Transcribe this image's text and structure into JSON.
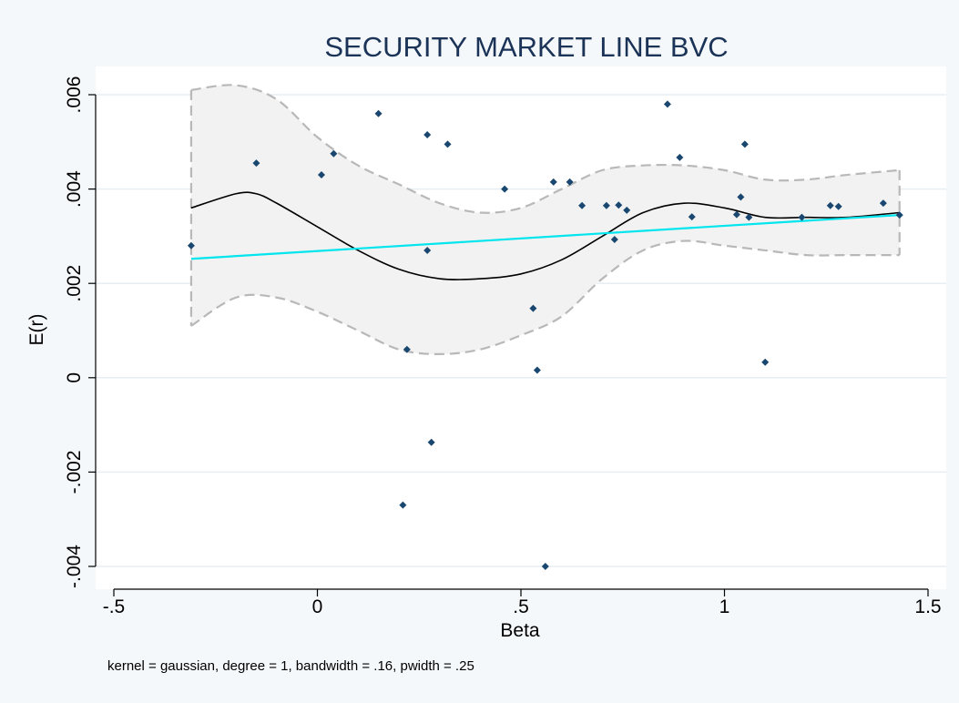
{
  "chart_data": {
    "type": "scatter",
    "title": "SECURITY MARKET LINE BVC",
    "xlabel": "Beta",
    "ylabel": "E(r)",
    "note": "kernel = gaussian, degree = 1, bandwidth = .16, pwidth = .25",
    "xlim": [
      -0.5,
      1.5
    ],
    "ylim": [
      -0.004,
      0.006
    ],
    "xticks": [
      -0.5,
      0,
      0.5,
      1,
      1.5
    ],
    "xtick_labels": [
      "-.5",
      "0",
      ".5",
      "1",
      "1.5"
    ],
    "yticks": [
      -0.004,
      -0.002,
      0,
      0.002,
      0.004,
      0.006
    ],
    "ytick_labels": [
      "-.004",
      "-.002",
      "0",
      ".002",
      ".004",
      ".006"
    ],
    "grid": true,
    "legend": "none",
    "colors": {
      "points": "#1a476f",
      "fit_line": "#00e5ee",
      "smooth_line": "#000000",
      "band_fill": "#f2f2f2",
      "band_edge": "#b8b8b8",
      "plot_bg": "#ffffff",
      "outer_bg": "#f5f8fb",
      "gridline": "#e6eef2",
      "title": "#1a3356"
    },
    "series": [
      {
        "kind": "points",
        "x": [
          -0.31,
          -0.15,
          0.01,
          0.04,
          0.15,
          0.21,
          0.22,
          0.27,
          0.27,
          0.28,
          0.32,
          0.46,
          0.53,
          0.54,
          0.56,
          0.58,
          0.62,
          0.65,
          0.71,
          0.73,
          0.74,
          0.76,
          0.86,
          0.89,
          0.92,
          1.03,
          1.04,
          1.05,
          1.06,
          1.1,
          1.19,
          1.26,
          1.28,
          1.39,
          1.43
        ],
        "y": [
          0.0028,
          0.00455,
          0.0043,
          0.00475,
          0.0056,
          -0.0027,
          0.0006,
          0.00515,
          0.0027,
          -0.00137,
          0.00495,
          0.004,
          0.00147,
          0.00016,
          -0.004,
          0.00415,
          0.00415,
          0.00365,
          0.00365,
          0.00293,
          0.00366,
          0.00355,
          0.0058,
          0.00467,
          0.00341,
          0.00346,
          0.00383,
          0.00495,
          0.0034,
          0.00033,
          0.0034,
          0.00365,
          0.00363,
          0.0037,
          0.00345
        ]
      },
      {
        "kind": "linear_fit",
        "x": [
          -0.31,
          1.43
        ],
        "y": [
          0.00252,
          0.00345
        ]
      },
      {
        "kind": "lpoly_smooth",
        "x": [
          -0.31,
          -0.2,
          -0.15,
          -0.1,
          0.0,
          0.1,
          0.2,
          0.3,
          0.4,
          0.5,
          0.6,
          0.7,
          0.8,
          0.9,
          1.0,
          1.1,
          1.2,
          1.3,
          1.43
        ],
        "y": [
          0.0036,
          0.0039,
          0.0039,
          0.0037,
          0.0032,
          0.0027,
          0.0023,
          0.0021,
          0.0021,
          0.0022,
          0.0025,
          0.003,
          0.0035,
          0.0037,
          0.0036,
          0.0034,
          0.0034,
          0.0034,
          0.0035
        ]
      },
      {
        "kind": "ci_upper",
        "x": [
          -0.31,
          -0.2,
          -0.1,
          0.0,
          0.1,
          0.2,
          0.3,
          0.4,
          0.5,
          0.6,
          0.7,
          0.8,
          0.9,
          1.0,
          1.1,
          1.2,
          1.3,
          1.43
        ],
        "y": [
          0.0061,
          0.0062,
          0.0059,
          0.0051,
          0.0045,
          0.0041,
          0.0037,
          0.0035,
          0.0036,
          0.004,
          0.0044,
          0.0045,
          0.0045,
          0.0044,
          0.0042,
          0.0042,
          0.0043,
          0.0044
        ]
      },
      {
        "kind": "ci_lower",
        "x": [
          -0.31,
          -0.2,
          -0.1,
          0.0,
          0.1,
          0.2,
          0.3,
          0.4,
          0.5,
          0.6,
          0.7,
          0.8,
          0.9,
          1.0,
          1.1,
          1.2,
          1.3,
          1.43
        ],
        "y": [
          0.0011,
          0.0017,
          0.0017,
          0.0014,
          0.001,
          0.0006,
          0.0005,
          0.0006,
          0.0009,
          0.0013,
          0.0021,
          0.0027,
          0.0029,
          0.0028,
          0.0027,
          0.0026,
          0.0026,
          0.0026
        ]
      }
    ]
  }
}
